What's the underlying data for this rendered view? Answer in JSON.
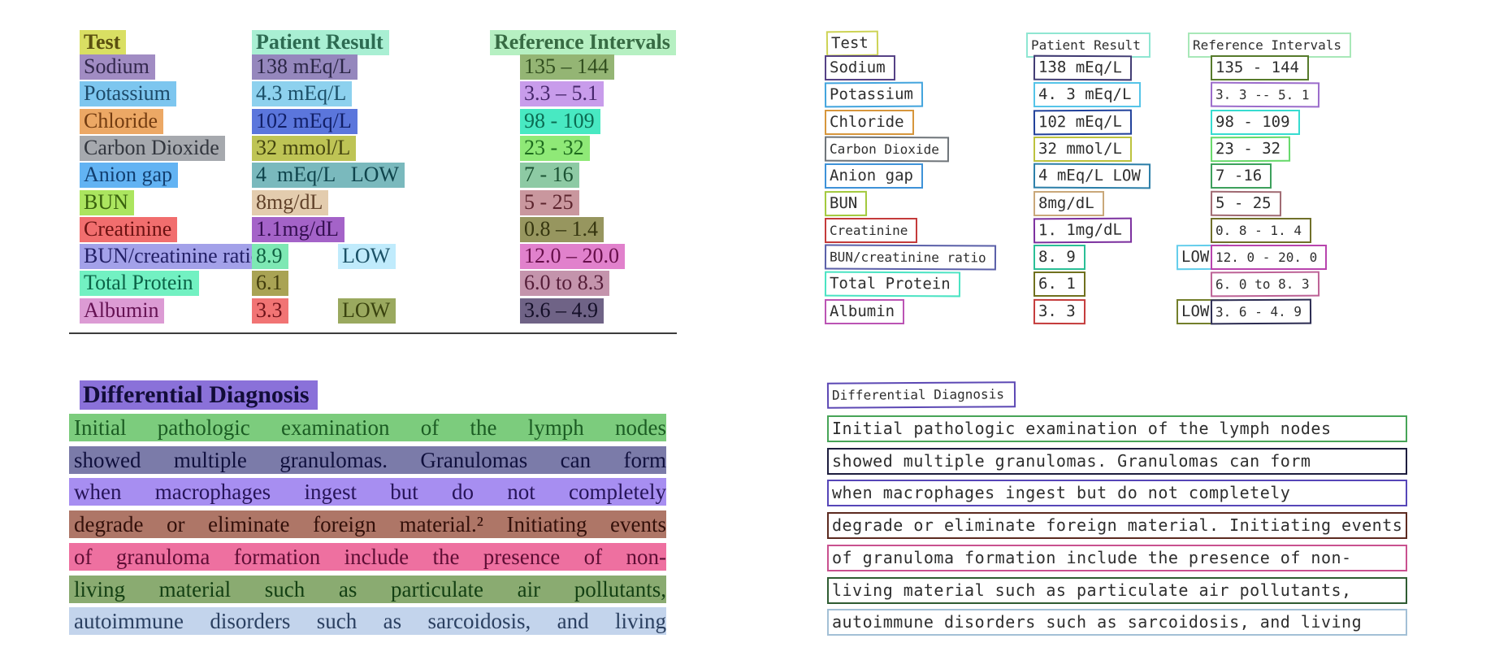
{
  "left_panel": {
    "table": {
      "header": [
        {
          "text": "Test",
          "hl": "#d9df63",
          "fg": "#5a4f10"
        },
        {
          "text": "Patient Result",
          "hl": "#a9efd3",
          "fg": "#2d6b52"
        },
        {
          "text": "Reference Intervals",
          "hl": "#b6f0c2",
          "fg": "#376b43"
        }
      ],
      "rows": [
        {
          "test": {
            "text": "Sodium",
            "hl": "#a18cc3",
            "fg": "#33284d"
          },
          "result": {
            "text": "138 mEq/L",
            "hl": "#9587bd",
            "fg": "#2c2747"
          },
          "ref": {
            "text": "135 – 144",
            "hl": "#94b574",
            "fg": "#324e1f"
          }
        },
        {
          "test": {
            "text": "Potassium",
            "hl": "#7dc6ef",
            "fg": "#1d4a69"
          },
          "result": {
            "text": "4.3 mEq/L",
            "hl": "#8dd1ee",
            "fg": "#1c4f68"
          },
          "ref": {
            "text": "3.3 – 5.1",
            "hl": "#c89ceb",
            "fg": "#46276b"
          }
        },
        {
          "test": {
            "text": "Chloride",
            "hl": "#eca865",
            "fg": "#733c11"
          },
          "result": {
            "text": "102 mEq/L",
            "hl": "#5b76dc",
            "fg": "#111f66"
          },
          "ref": {
            "text": "98 - 109",
            "hl": "#48e9c2",
            "fg": "#0b6b52"
          }
        },
        {
          "test": {
            "text": "Carbon Dioxide",
            "hl": "#a6a9ae",
            "fg": "#33373f"
          },
          "result": {
            "text": "32 mmol/L",
            "hl": "#bec455",
            "fg": "#44450f"
          },
          "ref": {
            "text": "23 - 32",
            "hl": "#8fe977",
            "fg": "#1d6b1d"
          }
        },
        {
          "test": {
            "text": "Anion gap",
            "hl": "#62b3f3",
            "fg": "#123f70"
          },
          "result": {
            "text": "4  mEq/L   LOW",
            "hl": "#7ab9bd",
            "fg": "#0f444c"
          },
          "ref": {
            "text": "7 - 16",
            "hl": "#8dcaa4",
            "fg": "#1b5233"
          }
        },
        {
          "test": {
            "text": "BUN",
            "hl": "#abe55f",
            "fg": "#39610e"
          },
          "result": {
            "text": "8mg/dL",
            "hl": "#e3ccae",
            "fg": "#61422a"
          },
          "ref": {
            "text": "5 - 25",
            "hl": "#c9979e",
            "fg": "#5c242d"
          }
        },
        {
          "test": {
            "text": "Creatinine",
            "hl": "#f16e6e",
            "fg": "#6b1212"
          },
          "result": {
            "text": "1.1mg/dL",
            "hl": "#a463c8",
            "fg": "#330e4f"
          },
          "ref": {
            "text": "0.8 – 1.4",
            "hl": "#97965f",
            "fg": "#35350f"
          }
        },
        {
          "test": {
            "text": "BUN/creatinine ratio",
            "hl": "#a3a1e9",
            "fg": "#232066"
          },
          "result": {
            "text": "8.9",
            "hl": "#7ee8b4",
            "fg": "#0f6141"
          },
          "low": {
            "text": "LOW",
            "hl": "#c0ebfc",
            "fg": "#1b5166"
          },
          "ref": {
            "text": "12.0 – 20.0",
            "hl": "#e181cc",
            "fg": "#660e49"
          }
        },
        {
          "test": {
            "text": "Total Protein",
            "hl": "#72f1c2",
            "fg": "#0b6347"
          },
          "result": {
            "text": "6.1",
            "hl": "#a9a354",
            "fg": "#423d0d"
          },
          "ref": {
            "text": "6.0 to 8.3",
            "hl": "#c494ac",
            "fg": "#541d38"
          }
        },
        {
          "test": {
            "text": "Albumin",
            "hl": "#dc9bd4",
            "fg": "#651253"
          },
          "result": {
            "text": "3.3",
            "hl": "#f17474",
            "fg": "#6e1219"
          },
          "low": {
            "text": "LOW",
            "hl": "#9aa95f",
            "fg": "#3a430f"
          },
          "ref": {
            "text": "3.6 – 4.9",
            "hl": "#6f6386",
            "fg": "#140f28"
          }
        }
      ]
    },
    "heading": {
      "text": "Differential Diagnosis",
      "hl": "#8a71d9",
      "fg": "#120d38"
    },
    "paragraph": [
      {
        "text": "Initial pathologic examination of the lymph nodes",
        "hl": "#7ccc7d",
        "fg": "#1b5c23"
      },
      {
        "text": "showed multiple granulomas. Granulomas can form",
        "hl": "#7b7ba9",
        "fg": "#10103d"
      },
      {
        "text": "when macrophages ingest but do not completely",
        "hl": "#a78ef1",
        "fg": "#261458"
      },
      {
        "text": "degrade or eliminate foreign material.² Initiating events",
        "hl": "#ae7667",
        "fg": "#33100a"
      },
      {
        "text": "of granuloma formation include the presence of non-",
        "hl": "#ee70a0",
        "fg": "#5e0e35"
      },
      {
        "text": "living material such as particulate air pollutants,",
        "hl": "#8aab71",
        "fg": "#133f13"
      },
      {
        "text": "autoimmune disorders such as sarcoidosis, and living",
        "hl": "#c3d4ec",
        "fg": "#2b4061"
      }
    ]
  },
  "right_panel": {
    "table": {
      "header": [
        {
          "text": "Test",
          "bc": "#cdd355",
          "sm": false
        },
        {
          "text": "Patient Result",
          "bc": "#8fe6d2",
          "sm": true
        },
        {
          "text": "Reference Intervals",
          "bc": "#a8e8b8",
          "sm": true
        }
      ],
      "rows": [
        {
          "test": {
            "text": "Sodium",
            "bc": "#564286"
          },
          "result": {
            "text": "138 mEq/L",
            "bc": "#3f3a72"
          },
          "ref": {
            "text": "135 - 144",
            "bc": "#567a2b"
          }
        },
        {
          "test": {
            "text": "Potassium",
            "bc": "#42a4dd"
          },
          "result": {
            "text": "4. 3 mEq/L",
            "bc": "#55c4e8"
          },
          "ref": {
            "text": "3. 3 -- 5. 1",
            "bc": "#9b6ccb",
            "sm": true
          }
        },
        {
          "test": {
            "text": "Chloride",
            "bc": "#d6963c"
          },
          "result": {
            "text": "102 mEq/L",
            "bc": "#20409a"
          },
          "ref": {
            "text": "98 - 109",
            "bc": "#37dcd0"
          }
        },
        {
          "test": {
            "text": "Carbon Dioxide",
            "bc": "#6e7479",
            "sm": true
          },
          "result": {
            "text": "32 mmol/L",
            "bc": "#bcc23e"
          },
          "ref": {
            "text": "23 - 32",
            "bc": "#66d96a"
          }
        },
        {
          "test": {
            "text": "Anion gap",
            "bc": "#3e92d8"
          },
          "result": {
            "text": "4 mEq/L LOW",
            "bc": "#2b7ea8"
          },
          "ref": {
            "text": "7 -16",
            "bc": "#3da05c"
          }
        },
        {
          "test": {
            "text": "BUN",
            "bc": "#a2c93c"
          },
          "result": {
            "text": "8mg/dL",
            "bc": "#c9a87a"
          },
          "ref": {
            "text": "5 - 25",
            "bc": "#a06a72"
          }
        },
        {
          "test": {
            "text": "Creatinine",
            "bc": "#c43b3b",
            "sm": true
          },
          "result": {
            "text": "1. 1mg/dL",
            "bc": "#7b2f9e"
          },
          "ref": {
            "text": "0. 8 - 1. 4",
            "bc": "#70702a",
            "sm": true
          }
        },
        {
          "test": {
            "text": "BUN/creatinine ratio",
            "bc": "#5a5fa8",
            "sm": true
          },
          "result": {
            "text": "8. 9",
            "bc": "#2bbf96"
          },
          "low": {
            "text": "LOW",
            "bc": "#63cdeb"
          },
          "ref": {
            "text": "12. 0 - 20. 0",
            "bc": "#b844ad",
            "sm": true
          }
        },
        {
          "test": {
            "text": "Total Protein",
            "bc": "#49e3c2"
          },
          "result": {
            "text": "6. 1",
            "bc": "#70701e"
          },
          "ref": {
            "text": "6. 0 to 8. 3",
            "bc": "#bd6296",
            "sm": true
          }
        },
        {
          "test": {
            "text": "Albumin",
            "bc": "#bb54b4"
          },
          "result": {
            "text": "3. 3",
            "bc": "#c43b3b"
          },
          "low": {
            "text": "LOW",
            "bc": "#737f2b"
          },
          "ref": {
            "text": "3. 6 - 4. 9",
            "bc": "#2c2c52",
            "sm": true
          }
        }
      ]
    },
    "heading": {
      "text": "Differential Diagnosis",
      "bc": "#5c48b4"
    },
    "paragraph": [
      {
        "text": "Initial pathologic examination of the lymph nodes",
        "bc": "#47a457"
      },
      {
        "text": "showed multiple granulomas. Granulomas can form",
        "bc": "#1d1d3e"
      },
      {
        "text": "when macrophages ingest but do not completely",
        "bc": "#5646b8"
      },
      {
        "text": "degrade or eliminate foreign material. Initiating events",
        "bc": "#5c2a20"
      },
      {
        "text": "of granuloma formation include the presence of non-",
        "bc": "#c9518f"
      },
      {
        "text": "living material such as particulate air pollutants,",
        "bc": "#2f5c32"
      },
      {
        "text": "autoimmune disorders such as sarcoidosis, and living",
        "bc": "#a3c0d6"
      }
    ]
  }
}
